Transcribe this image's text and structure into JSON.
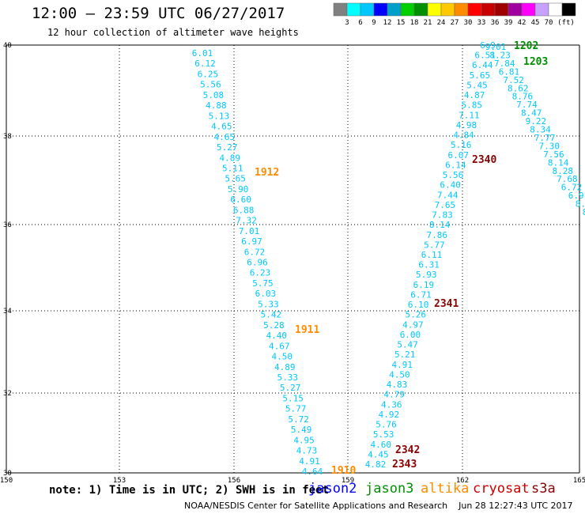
{
  "header": {
    "title": "12:00 — 23:59 UTC 06/27/2017",
    "subtitle": "12 hour collection of altimeter wave heights"
  },
  "legend": {
    "colors": [
      "#808080",
      "#00ffff",
      "#00c8ff",
      "#0000ff",
      "#00a0c8",
      "#00d000",
      "#009000",
      "#ffff00",
      "#ffc800",
      "#ff8c00",
      "#ff0000",
      "#c80000",
      "#a00000",
      "#a000a0",
      "#ff00ff",
      "#c8a0ff",
      "#ffffff",
      "#000000"
    ],
    "labels": [
      "3",
      "6",
      "9",
      "12",
      "15",
      "18",
      "21",
      "24",
      "27",
      "30",
      "33",
      "36",
      "39",
      "42",
      "45",
      "70"
    ],
    "unit": "(ft)"
  },
  "axes": {
    "x_ticks": [
      "150",
      "153",
      "156",
      "159",
      "162",
      "165"
    ],
    "y_ticks": [
      "30",
      "32",
      "34",
      "36",
      "38",
      "40"
    ]
  },
  "pass_labels": [
    {
      "text": "1912",
      "color": "#ff8c00"
    },
    {
      "text": "1911",
      "color": "#ff8c00"
    },
    {
      "text": "1910",
      "color": "#ff8c00"
    },
    {
      "text": "1202",
      "color": "#009000"
    },
    {
      "text": "1203",
      "color": "#009000"
    },
    {
      "text": "2340",
      "color": "#8b0000"
    },
    {
      "text": "2341",
      "color": "#8b0000"
    },
    {
      "text": "2342",
      "color": "#8b0000"
    },
    {
      "text": "2343",
      "color": "#8b0000"
    }
  ],
  "track1": [
    "6.01",
    "6.12",
    "6.25",
    "5.56",
    "5.08",
    "4.88",
    "5.13",
    "4.65",
    "4.65",
    "5.27",
    "4.89",
    "5.11",
    "5.65",
    "5.90",
    "6.60",
    "6.88",
    "7.32",
    "7.01",
    "6.97",
    "6.72",
    "6.96",
    "6.23",
    "5.75",
    "6.03",
    "5.33",
    "5.42",
    "5.28",
    "4.40",
    "4.67",
    "4.50",
    "4.89",
    "5.33",
    "5.27",
    "5.15",
    "5.77",
    "5.72",
    "5.49",
    "4.95",
    "4.73",
    "4.91",
    "4.64"
  ],
  "track2": [
    "4.82",
    "4.45",
    "4.60",
    "5.53",
    "5.76",
    "4.92",
    "4.36",
    "4.79",
    "4.83",
    "4.50",
    "4.91",
    "5.21",
    "5.47",
    "6.00",
    "4.97",
    "5.26",
    "6.10",
    "6.71",
    "6.19",
    "5.93",
    "6.31",
    "6.11",
    "5.77",
    "7.86",
    "8.14",
    "7.83",
    "7.65",
    "7.44",
    "6.40",
    "5.56",
    "6.14",
    "6.07",
    "5.16",
    "4.84",
    "4.98",
    "7.11",
    "5.85",
    "4.87",
    "5.45",
    "5.65",
    "6.44",
    "6.51",
    "6.9"
  ],
  "track3": [
    "9.01",
    "8.23",
    "7.84",
    "6.81",
    "7.52",
    "8.62",
    "8.76",
    "7.74",
    "8.47",
    "9.22",
    "8.34",
    "7.77",
    "7.30",
    "7.56",
    "8.14",
    "8.28",
    "7.68",
    "6.72",
    "6.9",
    "8.",
    "8"
  ],
  "note": "note: 1) Time is in UTC; 2) SWH is in feet",
  "satellites": [
    {
      "name": "jason2",
      "color": "#0000ff"
    },
    {
      "name": "jason3",
      "color": "#009000"
    },
    {
      "name": "altika",
      "color": "#ff8c00"
    },
    {
      "name": "cryosat",
      "color": "#cc0000"
    },
    {
      "name": "s3a",
      "color": "#8b0000"
    }
  ],
  "footer": "NOAA/NESDIS Center for Satellite Applications and Research    Jun 28 12:27:43 UTC 2017"
}
